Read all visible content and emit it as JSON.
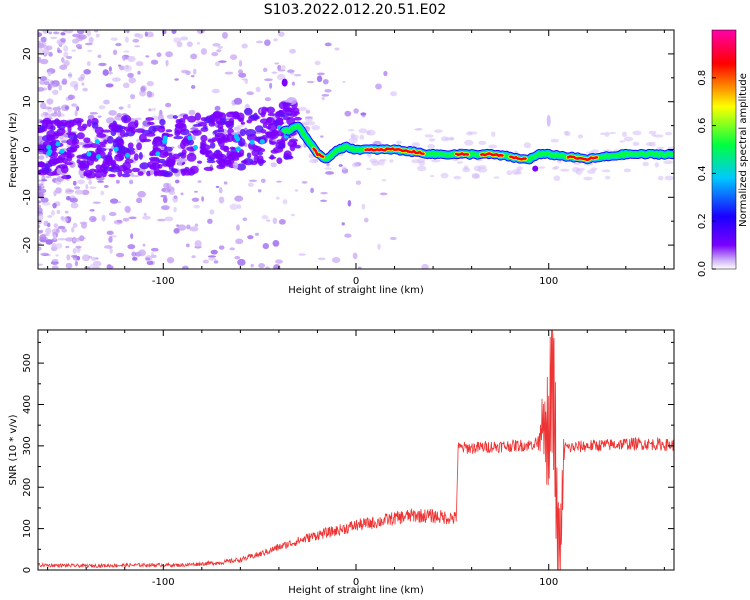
{
  "title": "S103.2022.012.20.51.E02",
  "colors": {
    "trace": "#ee3333",
    "colormap": [
      "#ffffff",
      "#c9a8f5",
      "#7a00ff",
      "#1a00ff",
      "#00c8ff",
      "#00ff40",
      "#ffff00",
      "#ff0000",
      "#ff00aa"
    ]
  },
  "chart_data": [
    {
      "type": "heatmap",
      "xlabel": "Height of straight line (km)",
      "ylabel": "Frequency (Hz)",
      "xlim": [
        -165,
        165
      ],
      "ylim": [
        -25,
        25
      ],
      "xticks": [
        -100,
        0,
        100
      ],
      "yticks": [
        -20,
        -10,
        0,
        10,
        20
      ],
      "grid": false,
      "ridge_frequency": {
        "x": [
          -165,
          -120,
          -80,
          -60,
          -45,
          -35,
          -30,
          -25,
          -20,
          -15,
          -10,
          -5,
          0,
          20,
          40,
          60,
          70,
          80,
          85,
          90,
          95,
          100,
          120,
          140,
          165
        ],
        "y": [
          0,
          0.5,
          1,
          2,
          3,
          4,
          5,
          2,
          -1,
          -2,
          0,
          0.5,
          0,
          0,
          -1,
          -1,
          -1,
          -1.5,
          -2,
          -2,
          -1,
          -1,
          -2,
          -1,
          -1
        ]
      },
      "colorbar": {
        "label": "Normalized spectral amplitude",
        "range": [
          0,
          1
        ],
        "ticks": [
          0.0,
          0.2,
          0.4,
          0.6,
          0.8
        ]
      }
    },
    {
      "type": "line",
      "xlabel": "Height of straight line (km)",
      "ylabel": "SNR (10 * v/v)",
      "xlim": [
        -165,
        165
      ],
      "ylim": [
        0,
        580
      ],
      "xticks": [
        -100,
        0,
        100
      ],
      "yticks": [
        0,
        100,
        200,
        300,
        400,
        500
      ],
      "grid": false,
      "series": [
        {
          "x": [
            -165,
            -140,
            -110,
            -90,
            -70,
            -60,
            -50,
            -40,
            -30,
            -20,
            -10,
            0,
            10,
            20,
            30,
            40,
            52,
            53,
            60,
            70,
            80,
            90,
            95,
            97,
            100,
            102,
            104,
            106,
            108,
            110,
            120,
            130,
            140,
            150,
            165
          ],
          "y": [
            12,
            10,
            12,
            12,
            18,
            25,
            38,
            55,
            70,
            85,
            95,
            108,
            115,
            125,
            132,
            130,
            125,
            295,
            295,
            298,
            300,
            302,
            310,
            360,
            300,
            550,
            160,
            20,
            300,
            295,
            300,
            302,
            305,
            305,
            302
          ]
        }
      ]
    }
  ]
}
